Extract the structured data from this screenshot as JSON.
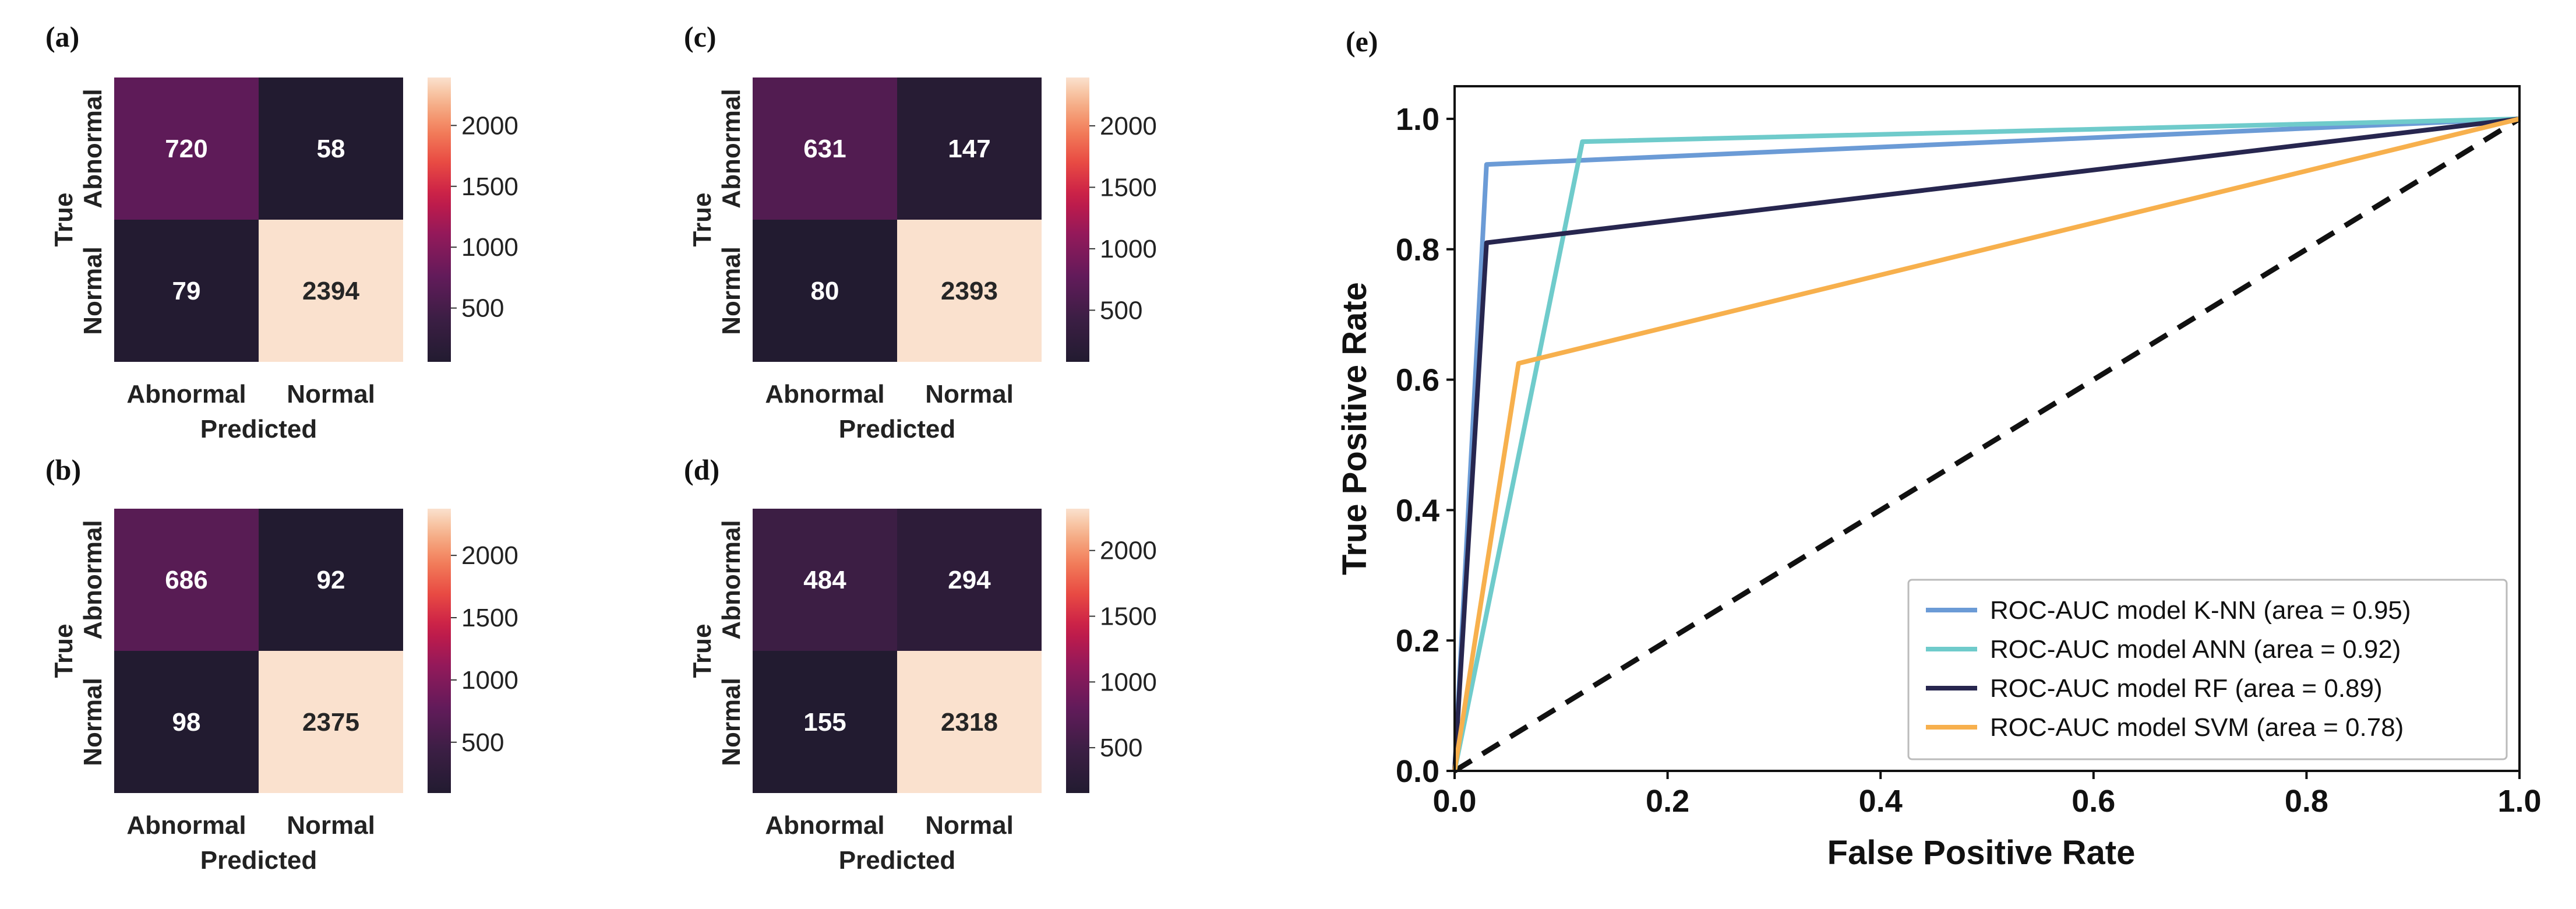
{
  "chart_data": [
    {
      "type": "heatmap",
      "panel": "(a)",
      "rows": [
        "Abnormal",
        "Normal"
      ],
      "cols": [
        "Abnormal",
        "Normal"
      ],
      "values": [
        [
          720,
          58
        ],
        [
          79,
          2394
        ]
      ],
      "xlabel": "Predicted",
      "ylabel": "True",
      "colorbar": {
        "min": 58,
        "max": 2394,
        "ticks": [
          500,
          1000,
          1500,
          2000
        ],
        "tick_labels": [
          "500",
          "1000",
          "1500",
          "2000"
        ]
      }
    },
    {
      "type": "heatmap",
      "panel": "(b)",
      "rows": [
        "Abnormal",
        "Normal"
      ],
      "cols": [
        "Abnormal",
        "Normal"
      ],
      "values": [
        [
          686,
          92
        ],
        [
          98,
          2375
        ]
      ],
      "xlabel": "Predicted",
      "ylabel": "True",
      "colorbar": {
        "min": 92,
        "max": 2375,
        "ticks": [
          500,
          1000,
          1500,
          2000
        ],
        "tick_labels": [
          "500",
          "1000",
          "1500",
          "2000"
        ]
      }
    },
    {
      "type": "heatmap",
      "panel": "(c)",
      "rows": [
        "Abnormal",
        "Normal"
      ],
      "cols": [
        "Abnormal",
        "Normal"
      ],
      "values": [
        [
          631,
          147
        ],
        [
          80,
          2393
        ]
      ],
      "xlabel": "Predicted",
      "ylabel": "True",
      "colorbar": {
        "min": 80,
        "max": 2393,
        "ticks": [
          500,
          1000,
          1500,
          2000
        ],
        "tick_labels": [
          "500",
          "1000",
          "1500",
          "2000"
        ]
      }
    },
    {
      "type": "heatmap",
      "panel": "(d)",
      "rows": [
        "Abnormal",
        "Normal"
      ],
      "cols": [
        "Abnormal",
        "Normal"
      ],
      "values": [
        [
          484,
          294
        ],
        [
          155,
          2318
        ]
      ],
      "xlabel": "Predicted",
      "ylabel": "True",
      "colorbar": {
        "min": 155,
        "max": 2318,
        "ticks": [
          500,
          1000,
          1500,
          2000
        ],
        "tick_labels": [
          "500",
          "1000",
          "1500",
          "2000"
        ]
      }
    },
    {
      "type": "line",
      "panel": "(e)",
      "xlabel": "False Positive Rate",
      "ylabel": "True Positive Rate",
      "xlim": [
        0.0,
        1.0
      ],
      "ylim": [
        0.0,
        1.05
      ],
      "xticks": [
        0.0,
        0.2,
        0.4,
        0.6,
        0.8,
        1.0
      ],
      "xtick_labels": [
        "0.0",
        "0.2",
        "0.4",
        "0.6",
        "0.8",
        "1.0"
      ],
      "yticks": [
        0.0,
        0.2,
        0.4,
        0.6,
        0.8,
        1.0
      ],
      "ytick_labels": [
        "0.0",
        "0.2",
        "0.4",
        "0.6",
        "0.8",
        "1.0"
      ],
      "series": [
        {
          "name": "ROC-AUC model K-NN (area = 0.95)",
          "color": "#6b9bd6",
          "x": [
            0.0,
            0.03,
            1.0
          ],
          "y": [
            0.0,
            0.93,
            1.0
          ]
        },
        {
          "name": "ROC-AUC model ANN (area = 0.92)",
          "color": "#6fcbcb",
          "x": [
            0.0,
            0.12,
            1.0
          ],
          "y": [
            0.0,
            0.965,
            1.0
          ]
        },
        {
          "name": "ROC-AUC model RF (area = 0.89)",
          "color": "#27264f",
          "x": [
            0.0,
            0.03,
            1.0
          ],
          "y": [
            0.0,
            0.81,
            1.0
          ]
        },
        {
          "name": "ROC-AUC model SVM (area = 0.78)",
          "color": "#f7b04d",
          "x": [
            0.0,
            0.06,
            1.0
          ],
          "y": [
            0.0,
            0.625,
            1.0
          ]
        }
      ],
      "reference_line": {
        "x": [
          0.0,
          1.0
        ],
        "y": [
          0.0,
          1.0
        ],
        "style": "dashed",
        "color": "#111111"
      },
      "legend": {
        "placement": "lower-right"
      }
    }
  ]
}
